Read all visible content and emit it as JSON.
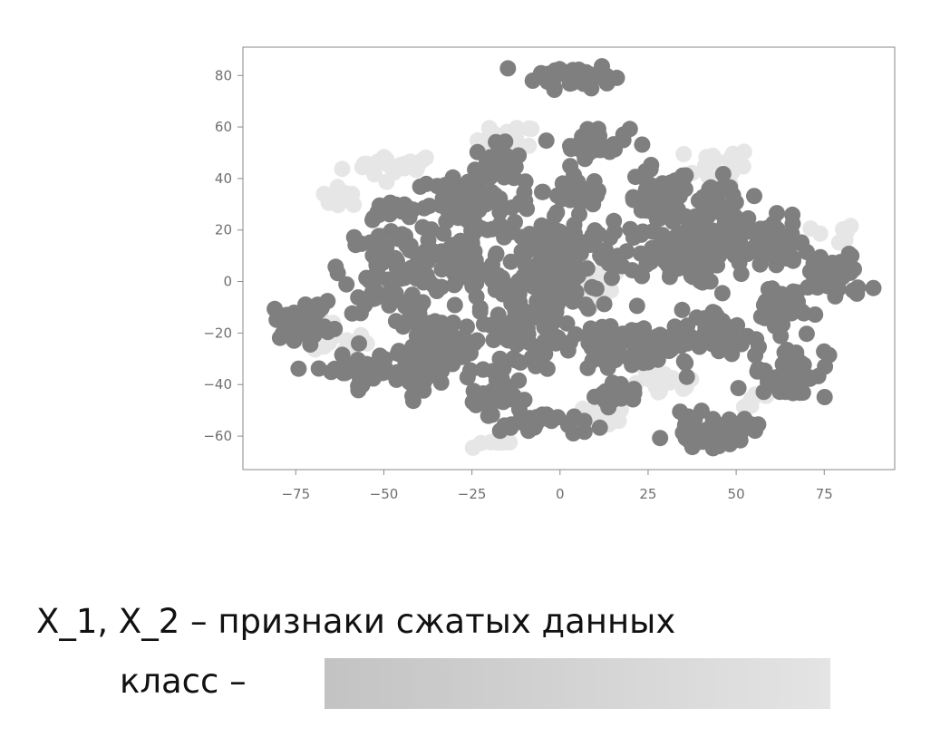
{
  "chart_data": {
    "type": "scatter",
    "title": "",
    "xlabel": "",
    "ylabel": "",
    "xlim": [
      -90,
      95
    ],
    "ylim": [
      -73,
      91
    ],
    "xticks": [
      -75,
      -50,
      -25,
      0,
      25,
      50,
      75
    ],
    "yticks": [
      -60,
      -40,
      -20,
      0,
      20,
      40,
      60,
      80
    ],
    "grid": false,
    "legend": "none",
    "series": [
      {
        "color": "#7f7f7f",
        "clusters": [
          {
            "cx": 4,
            "cy": 80,
            "rx": 9,
            "ry": 4,
            "n": 40
          },
          {
            "cx": -18,
            "cy": 46,
            "rx": 5,
            "ry": 6,
            "n": 30
          },
          {
            "cx": 10,
            "cy": 54,
            "rx": 8,
            "ry": 5,
            "n": 35
          },
          {
            "cx": -25,
            "cy": 30,
            "rx": 14,
            "ry": 9,
            "n": 70
          },
          {
            "cx": -47,
            "cy": 28,
            "rx": 5,
            "ry": 3,
            "n": 20
          },
          {
            "cx": 5,
            "cy": 35,
            "rx": 8,
            "ry": 5,
            "n": 35
          },
          {
            "cx": 28,
            "cy": 30,
            "rx": 8,
            "ry": 12,
            "n": 50
          },
          {
            "cx": 45,
            "cy": 30,
            "rx": 7,
            "ry": 8,
            "n": 35
          },
          {
            "cx": -47,
            "cy": 5,
            "rx": 12,
            "ry": 14,
            "n": 95
          },
          {
            "cx": -28,
            "cy": 5,
            "rx": 10,
            "ry": 10,
            "n": 60
          },
          {
            "cx": 0,
            "cy": 10,
            "rx": 16,
            "ry": 15,
            "n": 120
          },
          {
            "cx": 32,
            "cy": 10,
            "rx": 12,
            "ry": 9,
            "n": 60
          },
          {
            "cx": 55,
            "cy": 15,
            "rx": 13,
            "ry": 9,
            "n": 75
          },
          {
            "cx": 78,
            "cy": 2,
            "rx": 8,
            "ry": 8,
            "n": 45
          },
          {
            "cx": -73,
            "cy": -15,
            "rx": 7,
            "ry": 6,
            "n": 35
          },
          {
            "cx": -58,
            "cy": -35,
            "rx": 9,
            "ry": 5,
            "n": 40
          },
          {
            "cx": -40,
            "cy": -35,
            "rx": 6,
            "ry": 6,
            "n": 30
          },
          {
            "cx": -30,
            "cy": -25,
            "rx": 12,
            "ry": 10,
            "n": 60
          },
          {
            "cx": -10,
            "cy": -20,
            "rx": 12,
            "ry": 14,
            "n": 70
          },
          {
            "cx": -20,
            "cy": -45,
            "rx": 6,
            "ry": 5,
            "n": 25
          },
          {
            "cx": -5,
            "cy": -55,
            "rx": 10,
            "ry": 4,
            "n": 30
          },
          {
            "cx": 15,
            "cy": -25,
            "rx": 10,
            "ry": 10,
            "n": 50
          },
          {
            "cx": 30,
            "cy": -25,
            "rx": 9,
            "ry": 8,
            "n": 40
          },
          {
            "cx": 15,
            "cy": -45,
            "rx": 6,
            "ry": 3,
            "n": 20
          },
          {
            "cx": 45,
            "cy": -20,
            "rx": 6,
            "ry": 10,
            "n": 35
          },
          {
            "cx": 43,
            "cy": -58,
            "rx": 10,
            "ry": 5,
            "n": 50
          },
          {
            "cx": 65,
            "cy": -35,
            "rx": 9,
            "ry": 9,
            "n": 45
          },
          {
            "cx": 62,
            "cy": -10,
            "rx": 8,
            "ry": 8,
            "n": 35
          },
          {
            "cx": -3,
            "cy": -8,
            "rx": 6,
            "ry": 6,
            "n": 25
          }
        ]
      },
      {
        "color": "#e6e6e6",
        "clusters": [
          {
            "cx": -47,
            "cy": 45,
            "rx": 12,
            "ry": 4,
            "n": 20
          },
          {
            "cx": -62,
            "cy": 33,
            "rx": 5,
            "ry": 3,
            "n": 10
          },
          {
            "cx": -15,
            "cy": 55,
            "rx": 7,
            "ry": 5,
            "n": 15
          },
          {
            "cx": 45,
            "cy": 45,
            "rx": 8,
            "ry": 6,
            "n": 18
          },
          {
            "cx": -65,
            "cy": -22,
            "rx": 8,
            "ry": 6,
            "n": 20
          },
          {
            "cx": 30,
            "cy": -40,
            "rx": 8,
            "ry": 4,
            "n": 18
          },
          {
            "cx": 12,
            "cy": -52,
            "rx": 6,
            "ry": 4,
            "n": 12
          },
          {
            "cx": -20,
            "cy": -62,
            "rx": 5,
            "ry": 3,
            "n": 8
          },
          {
            "cx": 78,
            "cy": 18,
            "rx": 5,
            "ry": 4,
            "n": 8
          },
          {
            "cx": 8,
            "cy": 0,
            "rx": 10,
            "ry": 10,
            "n": 15
          },
          {
            "cx": 55,
            "cy": -45,
            "rx": 5,
            "ry": 5,
            "n": 8
          }
        ]
      }
    ]
  },
  "caption": "X_1, X_2 – признаки сжатых данных",
  "class_label": "класс –",
  "class_bar_colors": [
    "#c3c3c3",
    "#e4e4e4"
  ]
}
